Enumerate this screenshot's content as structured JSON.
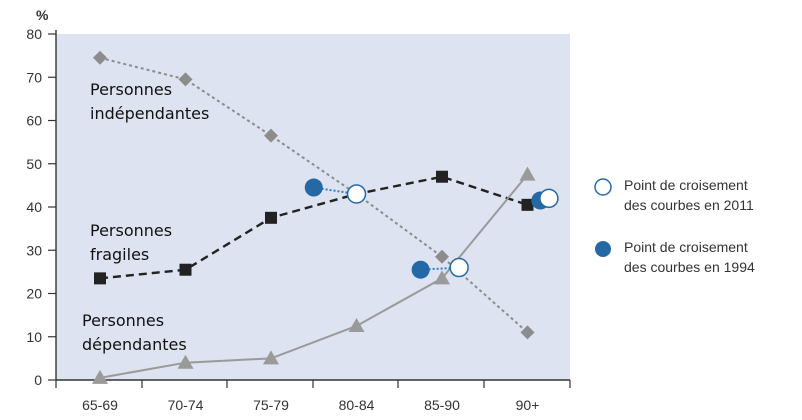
{
  "chart_data": {
    "type": "line",
    "title": "",
    "y_unit_label": "%",
    "xlabel": "",
    "ylabel": "",
    "categories": [
      "65-69",
      "70-74",
      "75-79",
      "80-84",
      "85-90",
      "90+"
    ],
    "y_ticks": [
      0,
      10,
      20,
      30,
      40,
      50,
      60,
      70,
      80
    ],
    "ylim": [
      0,
      80
    ],
    "grid": false,
    "series": [
      {
        "name": "Personnes indépendantes",
        "label_lines": [
          "Personnes",
          "indépendantes"
        ],
        "values": [
          74.5,
          69.5,
          56.5,
          43,
          28.5,
          11
        ],
        "color": "#8c8c8c",
        "marker": "diamond",
        "line_style": "dotted"
      },
      {
        "name": "Personnes fragiles",
        "label_lines": [
          "Personnes",
          "fragiles"
        ],
        "values": [
          23.5,
          25.5,
          37.5,
          43,
          47,
          40.5
        ],
        "color": "#222222",
        "marker": "square",
        "line_style": "dashed"
      },
      {
        "name": "Personnes dépendantes",
        "label_lines": [
          "Personnes",
          "dépendantes"
        ],
        "values": [
          0.5,
          4,
          5,
          12.5,
          23.5,
          47.5
        ],
        "color": "#9a9a9a",
        "marker": "triangle",
        "line_style": "solid"
      }
    ],
    "crossing_points_2011": [
      {
        "x": 3,
        "y": 43
      },
      {
        "x": 4.2,
        "y": 26
      },
      {
        "x": 5.25,
        "y": 42
      }
    ],
    "crossing_points_1994": [
      {
        "x": 2.5,
        "y": 44.5
      },
      {
        "x": 3.75,
        "y": 25.5
      },
      {
        "x": 5.15,
        "y": 41.5
      }
    ],
    "legend": [
      {
        "label_lines": [
          "Point de croisement",
          "des courbes en 2011"
        ],
        "style": "hollow"
      },
      {
        "label_lines": [
          "Point de croisement",
          "des courbes en 1994"
        ],
        "style": "filled"
      }
    ],
    "legend_placement": "right",
    "colors": {
      "plot_background": "#dde3f0",
      "crossing_2011_stroke": "#2469a6",
      "crossing_1994_fill": "#2469a6",
      "connector": "#2f7fd0"
    }
  }
}
